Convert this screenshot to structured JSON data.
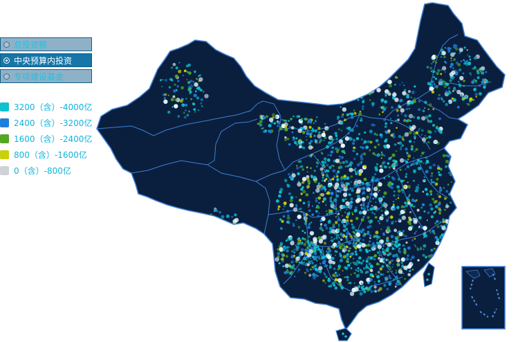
{
  "options": [
    {
      "label": "总投资额",
      "selected": false
    },
    {
      "label": "中央预算内投资",
      "selected": true
    },
    {
      "label": "专项建设基金",
      "selected": false
    }
  ],
  "legend": [
    {
      "label": "3200（含）-4000亿",
      "color": "#0fc1d1"
    },
    {
      "label": "2400（含）-3200亿",
      "color": "#1e7fd8"
    },
    {
      "label": "1600（含）-2400亿",
      "color": "#52a722"
    },
    {
      "label": "800（含）-1600亿",
      "color": "#c8d20a"
    },
    {
      "label": "0（含）-800亿",
      "color": "#cfd2d6"
    }
  ],
  "colors": {
    "land": "#0a1f3d",
    "border": "#3f7fd6",
    "background": "#ffffff"
  }
}
